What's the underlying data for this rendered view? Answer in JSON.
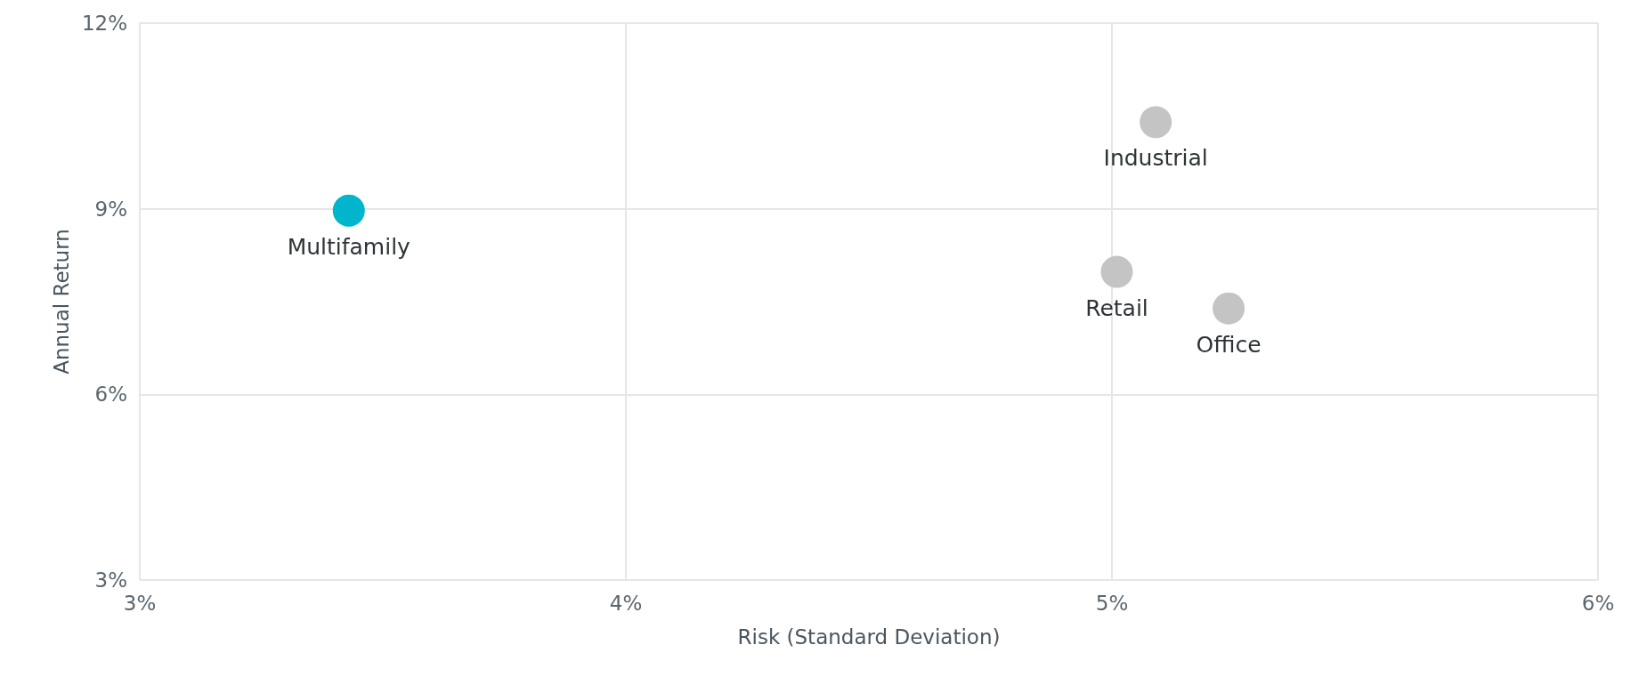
{
  "chart_data": {
    "type": "scatter",
    "xlabel": "Risk (Standard Deviation)",
    "ylabel": "Annual Return",
    "xlim": [
      3,
      6
    ],
    "xticks": [
      {
        "value": 3,
        "label": "3%"
      },
      {
        "value": 4,
        "label": "4%"
      },
      {
        "value": 5,
        "label": "5%"
      },
      {
        "value": 6,
        "label": "6%"
      }
    ],
    "ylim": [
      3,
      12
    ],
    "yticks": [
      {
        "value": 3,
        "label": "3%"
      },
      {
        "value": 6,
        "label": "6%"
      },
      {
        "value": 9,
        "label": "9%"
      },
      {
        "value": 12,
        "label": "12%"
      }
    ],
    "grid": true,
    "legend": false,
    "marker": "circle",
    "series": [
      {
        "name": "Multifamily",
        "color": "#00b5cc",
        "x": [
          3.43
        ],
        "values": [
          8.97
        ]
      },
      {
        "name": "Industrial",
        "color": "#c4c4c4",
        "x": [
          5.09
        ],
        "values": [
          10.4
        ]
      },
      {
        "name": "Retail",
        "color": "#c4c4c4",
        "x": [
          5.01
        ],
        "values": [
          7.98
        ]
      },
      {
        "name": "Office",
        "color": "#c4c4c4",
        "x": [
          5.24
        ],
        "values": [
          7.39
        ]
      }
    ]
  }
}
